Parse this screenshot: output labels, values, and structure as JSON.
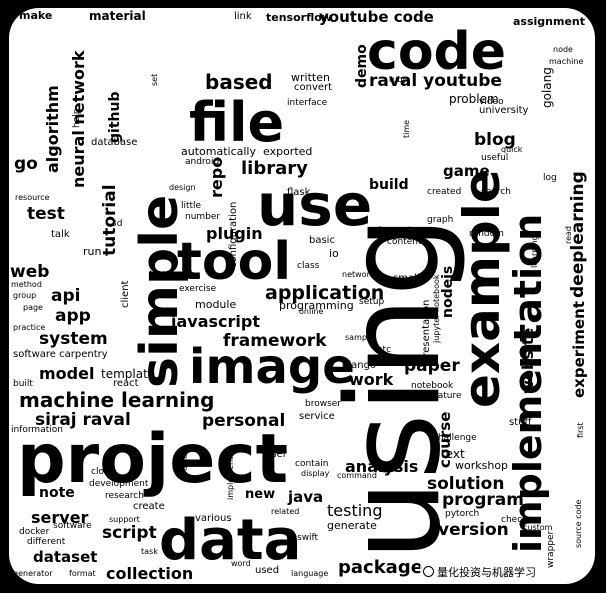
{
  "cloud": {
    "words": {
      "using": "using",
      "project": "project",
      "data": "data",
      "code": "code",
      "simple": "simple",
      "file": "file",
      "use": "use",
      "tool": "tool",
      "image": "image",
      "example": "example",
      "implementation": "implementation",
      "machine_learning": "machine learning",
      "siraj_raval": "siraj raval",
      "personal": "personal",
      "youtube_code": "youtube code",
      "raval_youtube": "raval youtube",
      "based": "based",
      "library": "library",
      "repo": "repo",
      "plugin": "plugin",
      "application": "application",
      "javascript": "javascript",
      "framework": "framework",
      "work": "work",
      "paper": "paper",
      "model": "model",
      "template": "template",
      "system": "system",
      "app": "app",
      "api": "api",
      "web": "web",
      "test": "test",
      "go": "go",
      "tutorial": "tutorial",
      "neural_network": "neural network",
      "algorithm": "algorithm",
      "github": "github",
      "blog": "blog",
      "game": "game",
      "deeplearning": "deeplearning",
      "experiment": "experiment",
      "website": "website",
      "course": "course",
      "analysis": "analysis",
      "solution": "solution",
      "program": "program",
      "version": "version",
      "package": "package",
      "collection": "collection",
      "dataset": "dataset",
      "server": "server",
      "note": "note",
      "script": "script",
      "new": "new",
      "java": "java",
      "testing": "testing",
      "build": "build",
      "demo": "demo",
      "nodejs": "nodejs",
      "material": "material",
      "tensorflow": "tensorflow",
      "make": "make",
      "link": "link",
      "assignment": "assignment",
      "automatically": "automatically",
      "exported": "exported",
      "written": "written",
      "convert": "convert",
      "interface": "interface",
      "problem": "problem",
      "university": "university",
      "video": "video",
      "golang": "golang",
      "database": "database",
      "help": "help",
      "function": "function",
      "content": "content",
      "random": "random",
      "graph": "graph",
      "search": "search",
      "created": "created",
      "flask": "flask",
      "configuration": "configuration",
      "number": "number",
      "little": "little",
      "android": "android",
      "basic": "basic",
      "io": "io",
      "class": "class",
      "network": "network",
      "small": "small",
      "module": "module",
      "exercise": "exercise",
      "programming": "programming",
      "setup": "setup",
      "django": "django",
      "sample": "sample",
      "etc": "etc",
      "presentation": "presentation",
      "jupyter_notebook": "jupyter notebook",
      "software_carpentry": "software carpentry",
      "react": "react",
      "built": "built",
      "information": "information",
      "notebook": "notebook",
      "feature": "feature",
      "service": "service",
      "browser": "browser",
      "challenge": "challenge",
      "stuff": "stuff",
      "text": "text",
      "workshop": "workshop",
      "user": "user",
      "contain": "contain",
      "command": "command",
      "development": "development",
      "research": "research",
      "create": "create",
      "clone": "clone",
      "various": "various",
      "related": "related",
      "generate": "generate",
      "software": "software",
      "docker": "docker",
      "support": "support",
      "swift": "swift",
      "pytorch": "pytorch",
      "check": "check",
      "custom": "custom",
      "wrapper": "wrapper",
      "source_code": "source code",
      "generator": "generator",
      "format": "format",
      "word": "word",
      "used": "used",
      "language": "language",
      "extension": "extension",
      "different": "different",
      "resource": "resource",
      "talk": "talk",
      "run": "run",
      "list": "list",
      "client": "client",
      "method": "method",
      "group": "group",
      "page": "page",
      "practice": "practice",
      "ruby": "ruby",
      "node": "node",
      "machine": "machine",
      "time": "time",
      "useful": "useful",
      "quick": "quick",
      "log": "log",
      "read": "read",
      "learning": "learning",
      "first": "first",
      "design": "design",
      "3d": "3d",
      "set": "set",
      "online": "online",
      "display": "display",
      "task": "task",
      "source": "source",
      "implement": "implement"
    }
  },
  "caption": "量化投资与机器学习"
}
